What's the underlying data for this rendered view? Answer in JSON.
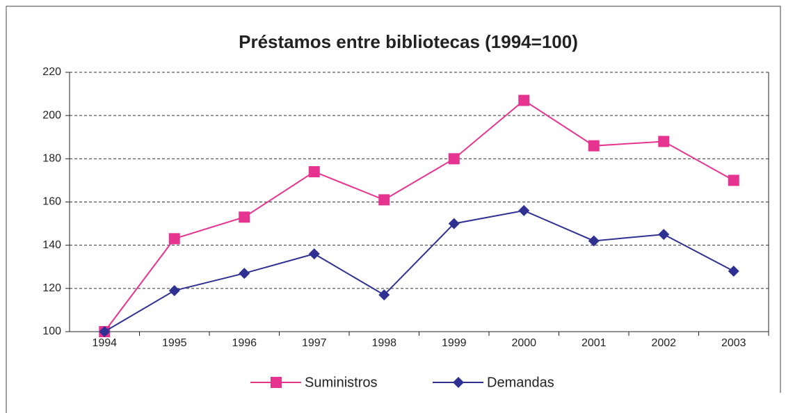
{
  "chart_data": {
    "type": "line",
    "title": "Préstamos entre bibliotecas (1994=100)",
    "categories": [
      "1994",
      "1995",
      "1996",
      "1997",
      "1998",
      "1999",
      "2000",
      "2001",
      "2002",
      "2003"
    ],
    "series": [
      {
        "name": "Suministros",
        "color": "#e6338f",
        "marker": "square",
        "values": [
          100,
          143,
          153,
          174,
          161,
          180,
          207,
          186,
          188,
          170
        ]
      },
      {
        "name": "Demandas",
        "color": "#2e3192",
        "marker": "diamond",
        "values": [
          100,
          119,
          127,
          136,
          117,
          150,
          156,
          142,
          145,
          128
        ]
      }
    ],
    "ylim": [
      100,
      220
    ],
    "yticks": [
      100,
      120,
      140,
      160,
      180,
      200,
      220
    ],
    "grid": true,
    "legend": "bottom"
  }
}
